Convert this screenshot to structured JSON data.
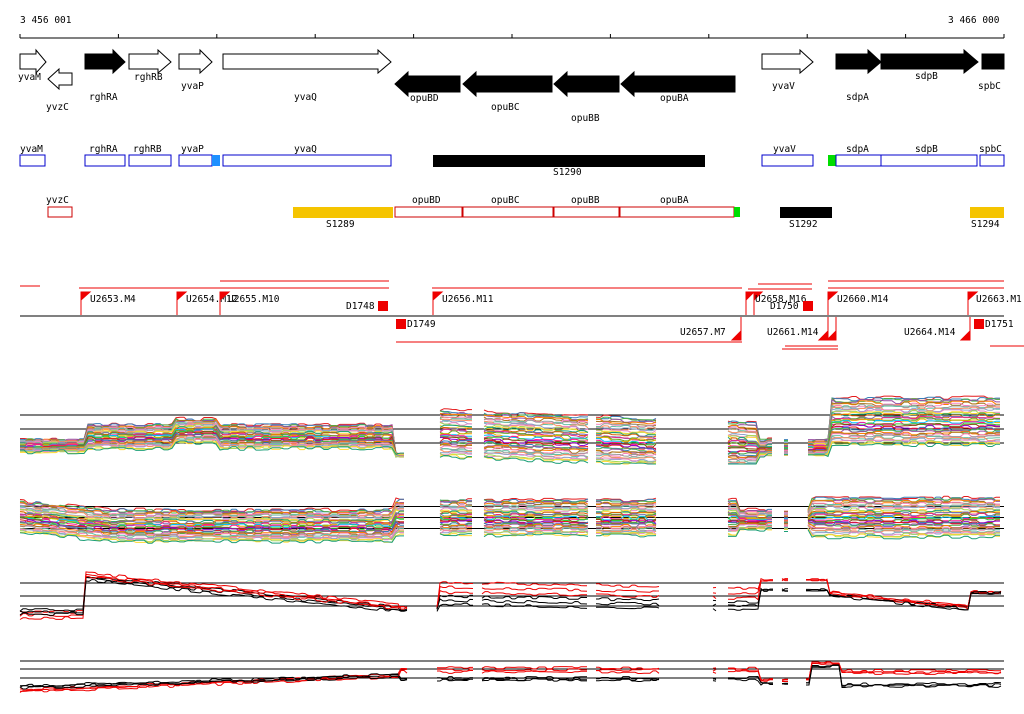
{
  "ruler": {
    "start_label": "3 456 001",
    "end_label": "3 466 000"
  },
  "colors": {
    "gene_fill": "#000000",
    "gene_outline": "#0000cc",
    "utr_outline": "#cc0000",
    "segment_black": "#000000",
    "segment_yellow": "#f5c400",
    "marker_blue": "#1e90ff",
    "marker_green": "#00dd00",
    "feature_red": "#ee0000",
    "series_red": "#ee0000",
    "series_black": "#000000"
  },
  "genes_strand_plus": [
    {
      "id": "yvaM",
      "label": "yvaM",
      "filled": false
    },
    {
      "id": "rghRA",
      "label": "rghRA",
      "filled": true
    },
    {
      "id": "rghRB",
      "label": "rghRB",
      "filled": false
    },
    {
      "id": "yvaP",
      "label": "yvaP",
      "filled": false
    },
    {
      "id": "yvaQ",
      "label": "yvaQ",
      "filled": false
    },
    {
      "id": "yvaV",
      "label": "yvaV",
      "filled": false
    },
    {
      "id": "sdpA",
      "label": "sdpA",
      "filled": true
    },
    {
      "id": "sdpB",
      "label": "sdpB",
      "filled": true
    },
    {
      "id": "spbC",
      "label": "spbC",
      "filled": true
    }
  ],
  "genes_strand_minus": [
    {
      "id": "yvzC",
      "label": "yvzC",
      "filled": false
    },
    {
      "id": "opuBD",
      "label": "opuBD",
      "filled": true
    },
    {
      "id": "opuBC",
      "label": "opuBC",
      "filled": true
    },
    {
      "id": "opuBB",
      "label": "opuBB",
      "filled": true
    },
    {
      "id": "opuBA",
      "label": "opuBA",
      "filled": true
    }
  ],
  "cds_boxes": [
    {
      "id": "yvaM",
      "label": "yvaM"
    },
    {
      "id": "rghRA",
      "label": "rghRA"
    },
    {
      "id": "rghRB",
      "label": "rghRB"
    },
    {
      "id": "yvaP",
      "label": "yvaP"
    },
    {
      "id": "yvaQ",
      "label": "yvaQ"
    },
    {
      "id": "S1290",
      "label": "S1290"
    },
    {
      "id": "yvaV",
      "label": "yvaV"
    },
    {
      "id": "sdpA",
      "label": "sdpA"
    },
    {
      "id": "sdpB",
      "label": "sdpB"
    },
    {
      "id": "spbC",
      "label": "spbC"
    }
  ],
  "minus_track": [
    {
      "id": "yvzC",
      "label": "yvzC"
    },
    {
      "id": "S1289",
      "label": "S1289"
    },
    {
      "id": "opuBD",
      "label": "opuBD"
    },
    {
      "id": "opuBC",
      "label": "opuBC"
    },
    {
      "id": "opuBB",
      "label": "opuBB"
    },
    {
      "id": "opuBA",
      "label": "opuBA"
    },
    {
      "id": "S1292",
      "label": "S1292"
    },
    {
      "id": "S1294",
      "label": "S1294"
    }
  ],
  "features_upper": [
    {
      "id": "U2653.M4",
      "label": "U2653.M4"
    },
    {
      "id": "U2654.M12",
      "label": "U2654.M12"
    },
    {
      "id": "U2655.M10",
      "label": "U2655.M10"
    },
    {
      "id": "D1748",
      "label": "D1748"
    },
    {
      "id": "U2656.M11",
      "label": "U2656.M11"
    },
    {
      "id": "U2658.M16",
      "label": "U2658.M16"
    },
    {
      "id": "D1750",
      "label": "D1750"
    },
    {
      "id": "U2660.M14",
      "label": "U2660.M14"
    },
    {
      "id": "U2663.M1",
      "label": "U2663.M1"
    }
  ],
  "features_lower": [
    {
      "id": "D1749",
      "label": "D1749"
    },
    {
      "id": "U2657.M7",
      "label": "U2657.M7"
    },
    {
      "id": "U2661.M14",
      "label": "U2661.M14"
    },
    {
      "id": "U2664.M14",
      "label": "U2664.M14"
    },
    {
      "id": "D1751",
      "label": "D1751"
    }
  ],
  "expression_panels": [
    {
      "id": "panel-multi-1",
      "kind": "many-series"
    },
    {
      "id": "panel-multi-2",
      "kind": "many-series"
    },
    {
      "id": "panel-two-1",
      "kind": "red-black"
    },
    {
      "id": "panel-two-2",
      "kind": "red-black"
    }
  ]
}
